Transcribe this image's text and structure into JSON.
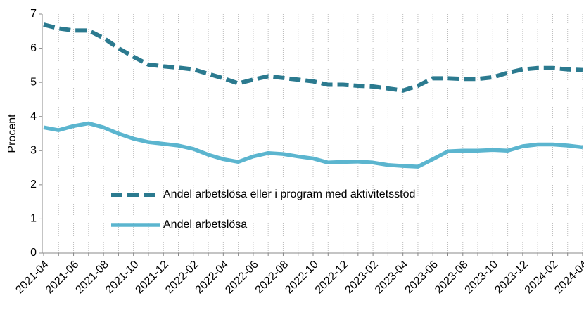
{
  "chart_data": {
    "type": "line",
    "y_label": "Procent",
    "categories": [
      "2021-04",
      null,
      "2021-06",
      null,
      "2021-08",
      null,
      "2021-10",
      null,
      "2021-12",
      null,
      "2022-02",
      null,
      "2022-04",
      null,
      "2022-06",
      null,
      "2022-08",
      null,
      "2022-10",
      null,
      "2022-12",
      null,
      "2023-02",
      null,
      "2023-04",
      null,
      "2023-06",
      null,
      "2023-08",
      null,
      "2023-10",
      null,
      "2023-12",
      null,
      "2024-02",
      null,
      "2024-04"
    ],
    "series": [
      {
        "name": "Andel arbetslösa eller i program med aktivitetsstöd",
        "color": "#2b7a8f",
        "dashed": true,
        "values": [
          6.69,
          6.58,
          6.52,
          6.52,
          6.3,
          6.0,
          5.75,
          5.52,
          5.47,
          5.43,
          5.38,
          5.25,
          5.12,
          4.97,
          5.08,
          5.18,
          5.13,
          5.08,
          5.03,
          4.93,
          4.93,
          4.9,
          4.88,
          4.82,
          4.76,
          4.9,
          5.12,
          5.12,
          5.1,
          5.1,
          5.15,
          5.28,
          5.38,
          5.42,
          5.42,
          5.38,
          5.36
        ]
      },
      {
        "name": "Andel arbetslösa",
        "color": "#5bb5cf",
        "dashed": false,
        "values": [
          3.68,
          3.6,
          3.72,
          3.8,
          3.68,
          3.5,
          3.35,
          3.25,
          3.2,
          3.15,
          3.05,
          2.88,
          2.75,
          2.67,
          2.83,
          2.93,
          2.9,
          2.83,
          2.77,
          2.65,
          2.67,
          2.68,
          2.65,
          2.58,
          2.55,
          2.53,
          2.75,
          2.98,
          3.0,
          3.0,
          3.02,
          3.0,
          3.13,
          3.18,
          3.18,
          3.15,
          3.1
        ]
      }
    ],
    "ylim": [
      0,
      7
    ],
    "yticks": [
      0,
      1,
      2,
      3,
      4,
      5,
      6,
      7
    ],
    "grid": true
  }
}
